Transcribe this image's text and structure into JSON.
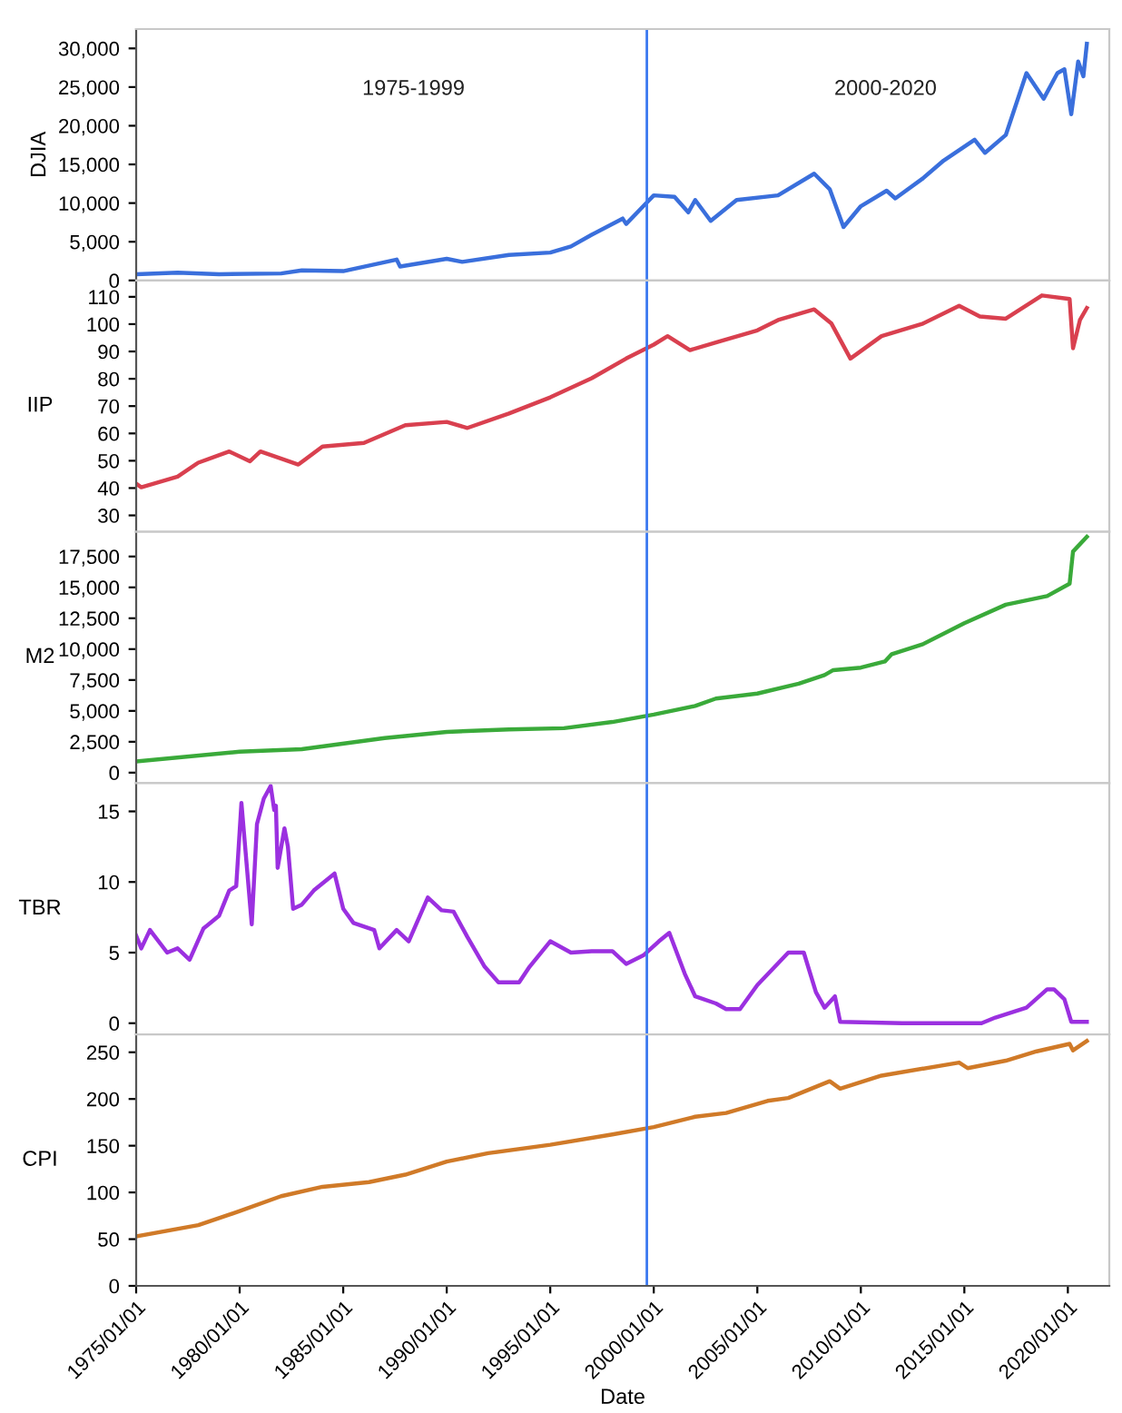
{
  "chart_data": [
    {
      "type": "line",
      "ylabel": "DJIA",
      "xlim": [
        "1975-01-01",
        "2022-01-01"
      ],
      "ylim": [
        0,
        32500
      ],
      "yticks": [
        0,
        {
          "value": 5000,
          "label": "5,000"
        },
        {
          "value": 10000,
          "label": "10,000"
        },
        {
          "value": 15000,
          "label": "15,000"
        },
        {
          "value": 20000,
          "label": "20,000"
        },
        {
          "value": 25000,
          "label": "25,000"
        },
        {
          "value": 30000,
          "label": "30,000"
        }
      ],
      "tick_labels": "y",
      "grid": false,
      "annotations": [
        "1975-1999",
        "2000-2020"
      ],
      "ref_lines": [
        {
          "axis": "x",
          "value": "1999-09",
          "color": "#3a78f0"
        }
      ],
      "x": [
        "1975-01",
        "1977-01",
        "1979-01",
        "1982-01",
        "1983-01",
        "1985-01",
        "1987-08",
        "1987-10",
        "1990-01",
        "1990-10",
        "1993-01",
        "1995-01",
        "1996-01",
        "1997-01",
        "1998-07",
        "1998-09",
        "1999-07",
        "2000-01",
        "2001-01",
        "2001-09",
        "2002-01",
        "2002-10",
        "2004-01",
        "2006-01",
        "2007-10",
        "2008-07",
        "2009-03",
        "2010-01",
        "2011-04",
        "2011-09",
        "2013-01",
        "2014-01",
        "2015-07",
        "2016-01",
        "2017-01",
        "2018-01",
        "2018-11",
        "2019-07",
        "2019-11",
        "2020-03",
        "2020-07",
        "2020-10",
        "2020-12"
      ],
      "series": [
        {
          "color": "#3a6fdc",
          "values": [
            800,
            1000,
            800,
            900,
            1300,
            1200,
            2700,
            1800,
            2800,
            2400,
            3300,
            3600,
            4400,
            5900,
            8000,
            7300,
            9600,
            11000,
            10800,
            8800,
            10400,
            7700,
            10400,
            11000,
            13800,
            11800,
            6900,
            9600,
            11600,
            10600,
            13200,
            15500,
            18200,
            16500,
            18800,
            26800,
            23500,
            26800,
            27300,
            21500,
            28300,
            26400,
            30600
          ]
        }
      ]
    },
    {
      "type": "line",
      "ylabel": "IIP",
      "xlim": [
        "1975-01-01",
        "2022-01-01"
      ],
      "ylim": [
        24,
        116
      ],
      "yticks": [
        30,
        40,
        50,
        60,
        70,
        80,
        90,
        100,
        110
      ],
      "tick_labels": "y",
      "grid": false,
      "ref_lines": [
        {
          "axis": "x",
          "value": "1999-09",
          "color": "#3a78f0"
        }
      ],
      "x": [
        "1975-01",
        "1975-04",
        "1977-01",
        "1978-01",
        "1979-07",
        "1980-07",
        "1981-01",
        "1982-11",
        "1984-01",
        "1986-01",
        "1988-01",
        "1990-01",
        "1991-01",
        "1993-01",
        "1995-01",
        "1997-01",
        "1998-09",
        "2000-01",
        "2000-09",
        "2001-10",
        "2003-01",
        "2005-01",
        "2006-01",
        "2007-10",
        "2008-08",
        "2009-07",
        "2011-01",
        "2013-01",
        "2014-10",
        "2015-10",
        "2017-01",
        "2018-10",
        "2020-02",
        "2020-04",
        "2020-08",
        "2020-12"
      ],
      "series": [
        {
          "color": "#d9404f",
          "values": [
            41.6,
            40.3,
            44.2,
            49.3,
            53.4,
            49.8,
            53.4,
            48.6,
            55.2,
            56.5,
            63,
            64.2,
            62,
            67.3,
            73.2,
            80.2,
            87.4,
            92.5,
            95.6,
            90.5,
            93.3,
            97.7,
            101.5,
            105.4,
            100.2,
            87.4,
            95.6,
            100.2,
            106.7,
            102.8,
            102,
            110.5,
            109.2,
            91.2,
            101.5,
            105.9
          ]
        }
      ]
    },
    {
      "type": "line",
      "ylabel": "M2",
      "xlim": [
        "1975-01-01",
        "2022-01-01"
      ],
      "ylim": [
        -850,
        19500
      ],
      "yticks": [
        0,
        {
          "value": 2500,
          "label": "2,500"
        },
        {
          "value": 5000,
          "label": "5,000"
        },
        {
          "value": 7500,
          "label": "7,500"
        },
        {
          "value": 10000,
          "label": "10,000"
        },
        {
          "value": 12500,
          "label": "12,500"
        },
        {
          "value": 15000,
          "label": "15,000"
        },
        {
          "value": 17500,
          "label": "17,500"
        }
      ],
      "tick_labels": "y",
      "grid": false,
      "ref_lines": [
        {
          "axis": "x",
          "value": "1999-09",
          "color": "#3a78f0"
        }
      ],
      "x": [
        "1975-01",
        "1980-01",
        "1983-01",
        "1987-01",
        "1990-01",
        "1993-01",
        "1995-09",
        "1998-01",
        "2000-01",
        "2002-01",
        "2003-01",
        "2005-01",
        "2007-01",
        "2008-04",
        "2008-09",
        "2010-01",
        "2011-03",
        "2011-07",
        "2013-01",
        "2015-01",
        "2017-01",
        "2019-01",
        "2020-02",
        "2020-04",
        "2020-12"
      ],
      "series": [
        {
          "color": "#3aaa3a",
          "values": [
            900,
            1700,
            1900,
            2800,
            3300,
            3500,
            3600,
            4100,
            4700,
            5400,
            6000,
            6400,
            7200,
            7900,
            8300,
            8500,
            9000,
            9600,
            10400,
            12100,
            13600,
            14300,
            15300,
            17900,
            19100
          ]
        }
      ]
    },
    {
      "type": "line",
      "ylabel": "TBR",
      "xlim": [
        "1975-01-01",
        "2022-01-01"
      ],
      "ylim": [
        -0.8,
        17
      ],
      "yticks": [
        0,
        5,
        10,
        15
      ],
      "tick_labels": "y",
      "grid": false,
      "ref_lines": [
        {
          "axis": "x",
          "value": "1999-09",
          "color": "#3a78f0"
        }
      ],
      "x": [
        "1975-01",
        "1975-04",
        "1975-09",
        "1976-07",
        "1977-01",
        "1977-08",
        "1978-04",
        "1979-01",
        "1979-07",
        "1979-11",
        "1980-02",
        "1980-08",
        "1980-11",
        "1981-03",
        "1981-07",
        "1981-09",
        "1981-10",
        "1981-11",
        "1982-03",
        "1982-05",
        "1982-08",
        "1983-01",
        "1983-08",
        "1984-08",
        "1985-01",
        "1985-07",
        "1986-07",
        "1986-10",
        "1987-08",
        "1988-03",
        "1989-02",
        "1989-10",
        "1990-05",
        "1991-01",
        "1991-11",
        "1992-07",
        "1993-07",
        "1994-01",
        "1995-01",
        "1996-01",
        "1997-01",
        "1998-01",
        "1998-09",
        "1999-07",
        "2000-04",
        "2000-10",
        "2001-07",
        "2002-01",
        "2003-01",
        "2003-07",
        "2004-03",
        "2005-01",
        "2006-07",
        "2007-04",
        "2007-11",
        "2008-04",
        "2008-10",
        "2009-01",
        "2012-01",
        "2015-11",
        "2016-07",
        "2018-01",
        "2019-01",
        "2019-05",
        "2019-11",
        "2020-03",
        "2020-12"
      ],
      "series": [
        {
          "color": "#9b30e0",
          "values": [
            6.2,
            5.3,
            6.6,
            5.0,
            5.3,
            4.5,
            6.7,
            7.6,
            9.4,
            9.7,
            15.6,
            7.0,
            14.1,
            15.9,
            16.8,
            15.1,
            15.4,
            11.0,
            13.8,
            12.5,
            8.1,
            8.4,
            9.4,
            10.6,
            8.1,
            7.1,
            6.6,
            5.3,
            6.6,
            5.8,
            8.9,
            8.0,
            7.9,
            6.1,
            4.0,
            2.9,
            2.9,
            4.0,
            5.8,
            5.0,
            5.1,
            5.1,
            4.2,
            4.8,
            5.8,
            6.4,
            3.5,
            1.9,
            1.4,
            1.0,
            1.0,
            2.7,
            5.0,
            5.0,
            2.2,
            1.1,
            1.9,
            0.1,
            0.0,
            0.0,
            0.4,
            1.1,
            2.4,
            2.4,
            1.7,
            0.1,
            0.1
          ]
        }
      ]
    },
    {
      "type": "line",
      "ylabel": "CPI",
      "xlabel": "Date",
      "xlim": [
        "1975-01-01",
        "2022-01-01"
      ],
      "ylim": [
        0,
        269
      ],
      "yticks": [
        0,
        50,
        100,
        150,
        200,
        250
      ],
      "grid": false,
      "xticks": [
        {
          "value": "1975-01-01",
          "label": "1975/01/01"
        },
        {
          "value": "1980-01-01",
          "label": "1980/01/01"
        },
        {
          "value": "1985-01-01",
          "label": "1985/01/01"
        },
        {
          "value": "1990-01-01",
          "label": "1990/01/01"
        },
        {
          "value": "1995-01-01",
          "label": "1995/01/01"
        },
        {
          "value": "2000-01-01",
          "label": "2000/01/01"
        },
        {
          "value": "2005-01-01",
          "label": "2005/01/01"
        },
        {
          "value": "2010-01-01",
          "label": "2010/01/01"
        },
        {
          "value": "2015-01-01",
          "label": "2015/01/01"
        },
        {
          "value": "2020-01-01",
          "label": "2020/01/01"
        }
      ],
      "ref_lines": [
        {
          "axis": "x",
          "value": "1999-09",
          "color": "#3a78f0"
        }
      ],
      "x": [
        "1975-01",
        "1978-01",
        "1980-01",
        "1982-01",
        "1984-01",
        "1986-04",
        "1988-01",
        "1990-01",
        "1992-01",
        "1995-01",
        "1998-01",
        "2000-01",
        "2002-01",
        "2003-07",
        "2005-07",
        "2006-07",
        "2008-07",
        "2009-01",
        "2011-01",
        "2014-10",
        "2015-03",
        "2017-01",
        "2018-07",
        "2020-02",
        "2020-04",
        "2020-12"
      ],
      "series": [
        {
          "color": "#d07a28",
          "values": [
            53,
            65,
            80,
            96,
            106,
            111,
            119,
            133,
            142,
            151,
            162,
            170,
            181,
            185,
            198,
            201,
            219,
            211,
            225,
            239,
            233,
            241,
            251,
            259,
            252,
            262
          ]
        }
      ]
    }
  ]
}
